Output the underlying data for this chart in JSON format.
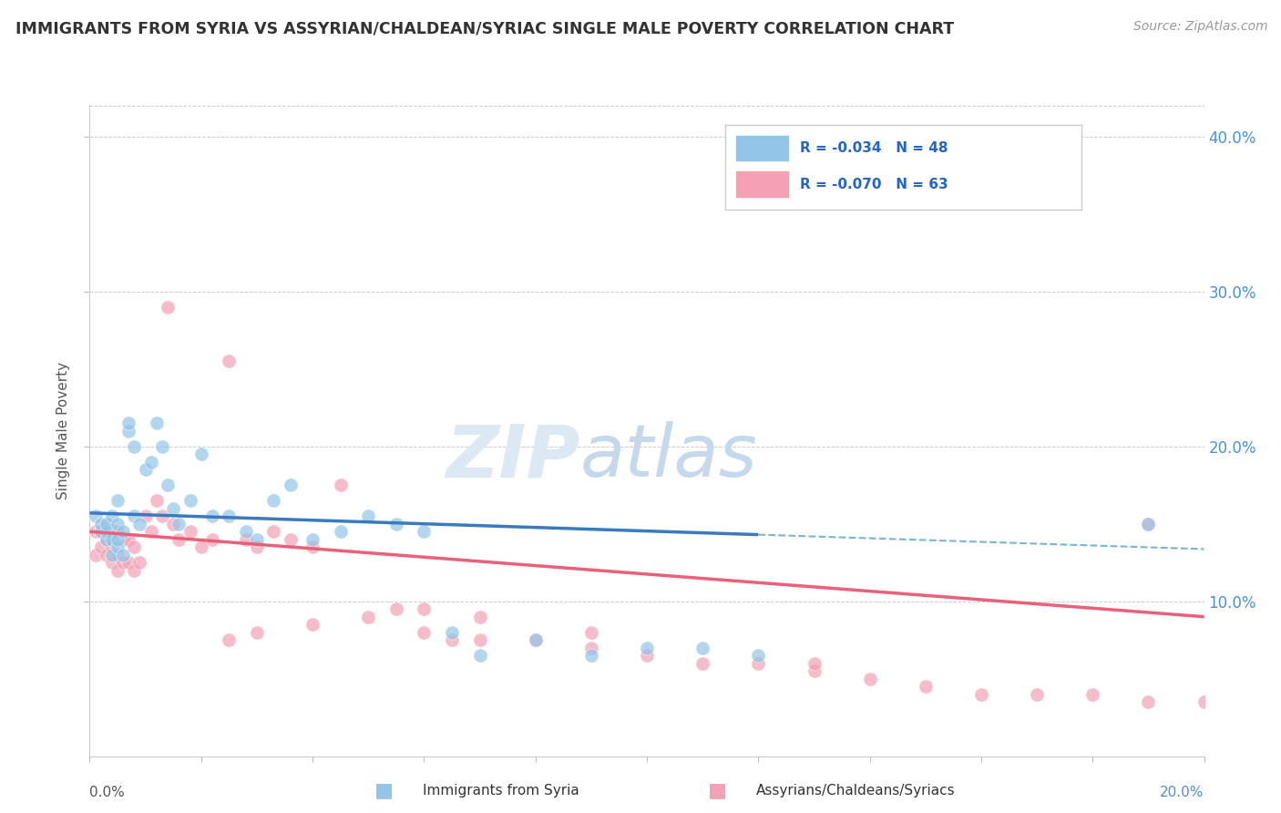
{
  "title": "IMMIGRANTS FROM SYRIA VS ASSYRIAN/CHALDEAN/SYRIAC SINGLE MALE POVERTY CORRELATION CHART",
  "source": "Source: ZipAtlas.com",
  "ylabel": "Single Male Poverty",
  "xlim": [
    0.0,
    0.2
  ],
  "ylim": [
    0.0,
    0.42
  ],
  "ytick_vals": [
    0.1,
    0.2,
    0.3,
    0.4
  ],
  "ytick_labels": [
    "10.0%",
    "20.0%",
    "30.0%",
    "40.0%"
  ],
  "legend1_r": "-0.034",
  "legend1_n": "48",
  "legend2_r": "-0.070",
  "legend2_n": "63",
  "color_blue": "#92c5e8",
  "color_pink": "#f4a0b5",
  "color_blue_line": "#3a7abf",
  "color_pink_line": "#e8607a",
  "color_blue_dash": "#7ab4d8",
  "blue_scatter_x": [
    0.001,
    0.002,
    0.002,
    0.003,
    0.003,
    0.003,
    0.004,
    0.004,
    0.004,
    0.005,
    0.005,
    0.005,
    0.005,
    0.006,
    0.006,
    0.007,
    0.007,
    0.008,
    0.008,
    0.009,
    0.01,
    0.011,
    0.012,
    0.013,
    0.014,
    0.015,
    0.016,
    0.018,
    0.02,
    0.022,
    0.025,
    0.028,
    0.03,
    0.033,
    0.036,
    0.04,
    0.045,
    0.05,
    0.055,
    0.06,
    0.065,
    0.07,
    0.08,
    0.09,
    0.1,
    0.11,
    0.12,
    0.19
  ],
  "blue_scatter_y": [
    0.155,
    0.145,
    0.15,
    0.14,
    0.145,
    0.15,
    0.13,
    0.14,
    0.155,
    0.135,
    0.14,
    0.15,
    0.165,
    0.13,
    0.145,
    0.21,
    0.215,
    0.155,
    0.2,
    0.15,
    0.185,
    0.19,
    0.215,
    0.2,
    0.175,
    0.16,
    0.15,
    0.165,
    0.195,
    0.155,
    0.155,
    0.145,
    0.14,
    0.165,
    0.175,
    0.14,
    0.145,
    0.155,
    0.15,
    0.145,
    0.08,
    0.065,
    0.075,
    0.065,
    0.07,
    0.07,
    0.065,
    0.15
  ],
  "pink_scatter_x": [
    0.001,
    0.001,
    0.002,
    0.002,
    0.003,
    0.003,
    0.003,
    0.004,
    0.004,
    0.004,
    0.005,
    0.005,
    0.005,
    0.006,
    0.006,
    0.007,
    0.007,
    0.008,
    0.008,
    0.009,
    0.01,
    0.011,
    0.012,
    0.013,
    0.014,
    0.015,
    0.016,
    0.018,
    0.02,
    0.022,
    0.025,
    0.028,
    0.03,
    0.033,
    0.036,
    0.04,
    0.045,
    0.05,
    0.055,
    0.06,
    0.065,
    0.07,
    0.08,
    0.09,
    0.1,
    0.11,
    0.12,
    0.13,
    0.14,
    0.15,
    0.16,
    0.17,
    0.18,
    0.19,
    0.2,
    0.025,
    0.03,
    0.04,
    0.06,
    0.07,
    0.09,
    0.13,
    0.19
  ],
  "pink_scatter_y": [
    0.13,
    0.145,
    0.135,
    0.145,
    0.13,
    0.14,
    0.15,
    0.125,
    0.135,
    0.145,
    0.12,
    0.13,
    0.145,
    0.125,
    0.14,
    0.125,
    0.14,
    0.12,
    0.135,
    0.125,
    0.155,
    0.145,
    0.165,
    0.155,
    0.29,
    0.15,
    0.14,
    0.145,
    0.135,
    0.14,
    0.255,
    0.14,
    0.135,
    0.145,
    0.14,
    0.135,
    0.175,
    0.09,
    0.095,
    0.08,
    0.075,
    0.075,
    0.075,
    0.07,
    0.065,
    0.06,
    0.06,
    0.055,
    0.05,
    0.045,
    0.04,
    0.04,
    0.04,
    0.035,
    0.035,
    0.075,
    0.08,
    0.085,
    0.095,
    0.09,
    0.08,
    0.06,
    0.15
  ],
  "blue_line_x_solid_start": 0.0,
  "blue_line_x_solid_end": 0.12,
  "blue_line_y_at_0": 0.157,
  "blue_line_y_at_end": 0.143,
  "pink_line_x_start": 0.0,
  "pink_line_x_end": 0.2,
  "pink_line_y_at_0": 0.145,
  "pink_line_y_at_end": 0.09
}
